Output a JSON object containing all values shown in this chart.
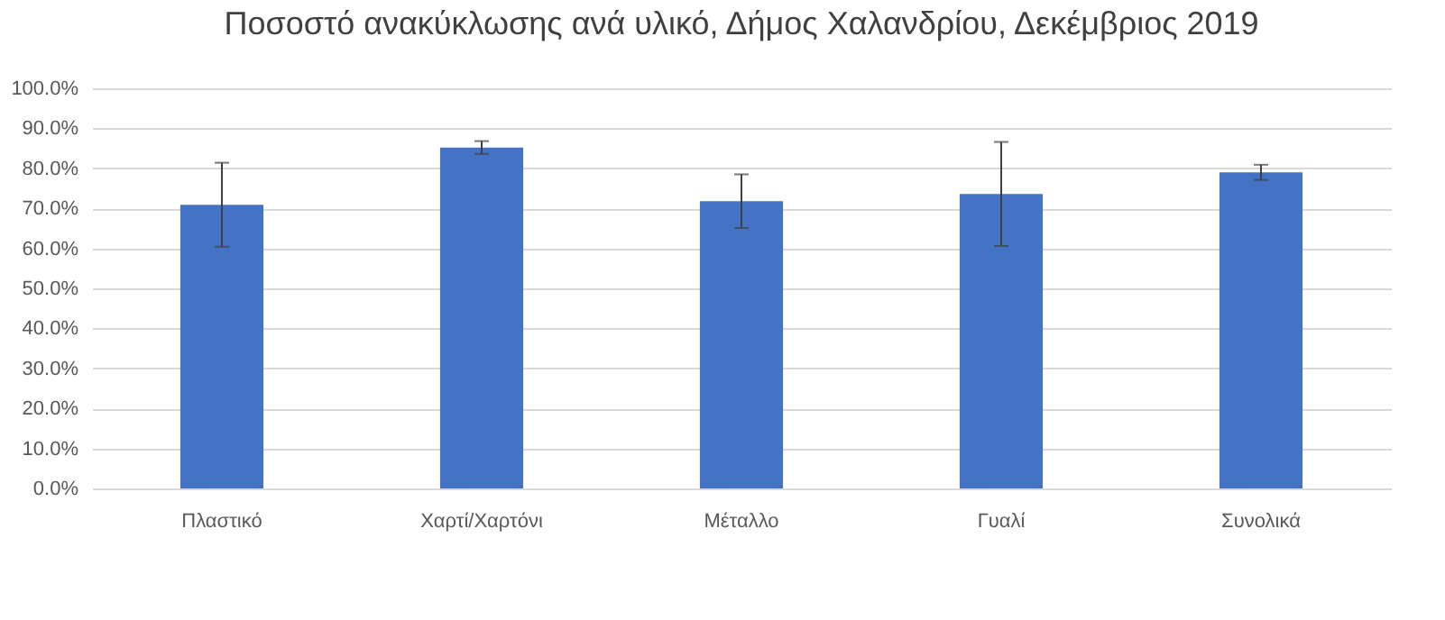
{
  "chart_data": {
    "type": "bar",
    "title": "Ποσοστό ανακύκλωσης ανά υλικό, Δήμος Χαλανδρίου, Δεκέμβριος 2019",
    "categories": [
      "Πλαστικό",
      "Χαρτί/Χαρτόνι",
      "Μέταλλο",
      "Γυαλί",
      "Συνολικά"
    ],
    "values": [
      70.9,
      85.2,
      71.8,
      73.6,
      79.0
    ],
    "errors": [
      10.5,
      1.6,
      6.7,
      13.0,
      1.9
    ],
    "color": "#4472c4",
    "ylim": [
      0,
      100
    ],
    "yticks": [
      {
        "value": 0,
        "label": "0.0%"
      },
      {
        "value": 10,
        "label": "10.0%"
      },
      {
        "value": 20,
        "label": "20.0%"
      },
      {
        "value": 30,
        "label": "30.0%"
      },
      {
        "value": 40,
        "label": "40.0%"
      },
      {
        "value": 50,
        "label": "50.0%"
      },
      {
        "value": 60,
        "label": "60.0%"
      },
      {
        "value": 70,
        "label": "70.0%"
      },
      {
        "value": 80,
        "label": "80.0%"
      },
      {
        "value": 90,
        "label": "90.0%"
      },
      {
        "value": 100,
        "label": "100.0%"
      }
    ],
    "grid": "y"
  }
}
